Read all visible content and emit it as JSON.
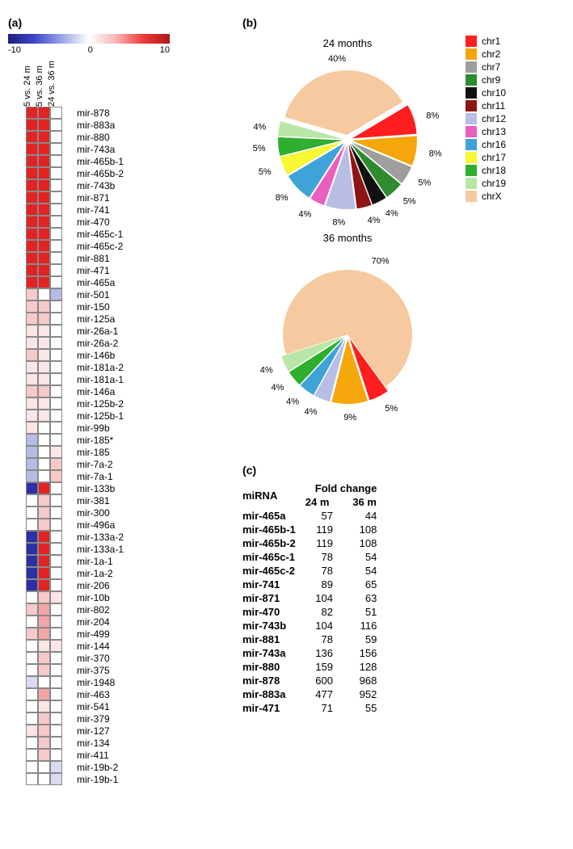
{
  "panel_labels": {
    "a": "(a)",
    "b": "(b)",
    "c": "(c)"
  },
  "colorbar": {
    "min": -10,
    "mid": 0,
    "max": 10,
    "min_label": "-10",
    "mid_label": "0",
    "max_label": "10",
    "gradient_colors": [
      "#1b1d7a",
      "#3f48cc",
      "#9aa6e5",
      "#ffffff",
      "#f7b5b5",
      "#ef3b3b",
      "#b01818"
    ]
  },
  "heatmap": {
    "cols": [
      "5 vs. 24 m",
      "5 vs. 36 m",
      "24 vs. 36 m"
    ],
    "blue": "#2b2fa8",
    "red": "#e32222",
    "white": "#ffffff",
    "lightred1": "#f4a5a5",
    "lightred2": "#f7c9c9",
    "lightred3": "#fbe5e5",
    "lightblue1": "#b7bce6",
    "lightblue2": "#d7daf1",
    "rows": [
      {
        "label": "mir-878",
        "v": [
          "red",
          "red",
          "white"
        ]
      },
      {
        "label": "mir-883a",
        "v": [
          "red",
          "red",
          "white"
        ]
      },
      {
        "label": "mir-880",
        "v": [
          "red",
          "red",
          "white"
        ]
      },
      {
        "label": "mir-743a",
        "v": [
          "red",
          "red",
          "white"
        ]
      },
      {
        "label": "mir-465b-1",
        "v": [
          "red",
          "red",
          "white"
        ]
      },
      {
        "label": "mir-465b-2",
        "v": [
          "red",
          "red",
          "white"
        ]
      },
      {
        "label": "mir-743b",
        "v": [
          "red",
          "red",
          "white"
        ]
      },
      {
        "label": "mir-871",
        "v": [
          "red",
          "red",
          "white"
        ]
      },
      {
        "label": "mir-741",
        "v": [
          "red",
          "red",
          "white"
        ]
      },
      {
        "label": "mir-470",
        "v": [
          "red",
          "red",
          "white"
        ]
      },
      {
        "label": "mir-465c-1",
        "v": [
          "red",
          "red",
          "white"
        ]
      },
      {
        "label": "mir-465c-2",
        "v": [
          "red",
          "red",
          "white"
        ]
      },
      {
        "label": "mir-881",
        "v": [
          "red",
          "red",
          "white"
        ]
      },
      {
        "label": "mir-471",
        "v": [
          "red",
          "red",
          "white"
        ]
      },
      {
        "label": "mir-465a",
        "v": [
          "red",
          "red",
          "white"
        ]
      },
      {
        "label": "mir-501",
        "v": [
          "lightred2",
          "white",
          "lightblue1"
        ]
      },
      {
        "label": "mir-150",
        "v": [
          "lightred2",
          "lightred2",
          "white"
        ]
      },
      {
        "label": "mir-125a",
        "v": [
          "lightred2",
          "lightred2",
          "white"
        ]
      },
      {
        "label": "mir-26a-1",
        "v": [
          "lightred3",
          "lightred3",
          "white"
        ]
      },
      {
        "label": "mir-26a-2",
        "v": [
          "lightred3",
          "lightred3",
          "white"
        ]
      },
      {
        "label": "mir-146b",
        "v": [
          "lightred2",
          "lightred3",
          "white"
        ]
      },
      {
        "label": "mir-181a-2",
        "v": [
          "lightred3",
          "lightred3",
          "white"
        ]
      },
      {
        "label": "mir-181a-1",
        "v": [
          "lightred3",
          "lightred3",
          "white"
        ]
      },
      {
        "label": "mir-146a",
        "v": [
          "lightred2",
          "lightred2",
          "white"
        ]
      },
      {
        "label": "mir-125b-2",
        "v": [
          "lightred3",
          "lightred3",
          "white"
        ]
      },
      {
        "label": "mir-125b-1",
        "v": [
          "lightred3",
          "lightred3",
          "white"
        ]
      },
      {
        "label": "mir-99b",
        "v": [
          "lightred3",
          "white",
          "white"
        ]
      },
      {
        "label": "mir-185*",
        "v": [
          "lightblue1",
          "white",
          "white"
        ]
      },
      {
        "label": "mir-185",
        "v": [
          "lightblue1",
          "white",
          "lightred3"
        ]
      },
      {
        "label": "mir-7a-2",
        "v": [
          "lightblue1",
          "white",
          "lightred2"
        ]
      },
      {
        "label": "mir-7a-1",
        "v": [
          "lightblue1",
          "white",
          "lightred2"
        ]
      },
      {
        "label": "mir-133b",
        "v": [
          "blue",
          "red",
          "white"
        ]
      },
      {
        "label": "mir-381",
        "v": [
          "white",
          "lightred2",
          "white"
        ]
      },
      {
        "label": "mir-300",
        "v": [
          "white",
          "lightred2",
          "white"
        ]
      },
      {
        "label": "mir-496a",
        "v": [
          "white",
          "lightred2",
          "white"
        ]
      },
      {
        "label": "mir-133a-2",
        "v": [
          "blue",
          "red",
          "white"
        ]
      },
      {
        "label": "mir-133a-1",
        "v": [
          "blue",
          "red",
          "white"
        ]
      },
      {
        "label": "mir-1a-1",
        "v": [
          "blue",
          "red",
          "white"
        ]
      },
      {
        "label": "mir-1a-2",
        "v": [
          "blue",
          "red",
          "white"
        ]
      },
      {
        "label": "mir-206",
        "v": [
          "blue",
          "red",
          "white"
        ]
      },
      {
        "label": "mir-10b",
        "v": [
          "white",
          "lightred2",
          "lightred3"
        ]
      },
      {
        "label": "mir-802",
        "v": [
          "lightred2",
          "lightred1",
          "white"
        ]
      },
      {
        "label": "mir-204",
        "v": [
          "white",
          "lightred1",
          "white"
        ]
      },
      {
        "label": "mir-499",
        "v": [
          "lightred2",
          "lightred1",
          "white"
        ]
      },
      {
        "label": "mir-144",
        "v": [
          "white",
          "lightred3",
          "lightred3"
        ]
      },
      {
        "label": "mir-370",
        "v": [
          "white",
          "lightred2",
          "white"
        ]
      },
      {
        "label": "mir-375",
        "v": [
          "white",
          "lightred2",
          "white"
        ]
      },
      {
        "label": "mir-1948",
        "v": [
          "lightblue2",
          "white",
          "white"
        ]
      },
      {
        "label": "mir-463",
        "v": [
          "white",
          "lightred1",
          "white"
        ]
      },
      {
        "label": "mir-541",
        "v": [
          "white",
          "lightred3",
          "white"
        ]
      },
      {
        "label": "mir-379",
        "v": [
          "white",
          "lightred2",
          "white"
        ]
      },
      {
        "label": "mir-127",
        "v": [
          "lightred3",
          "lightred2",
          "white"
        ]
      },
      {
        "label": "mir-134",
        "v": [
          "white",
          "lightred2",
          "white"
        ]
      },
      {
        "label": "mir-411",
        "v": [
          "white",
          "lightred2",
          "white"
        ]
      },
      {
        "label": "mir-19b-2",
        "v": [
          "white",
          "white",
          "lightblue2"
        ]
      },
      {
        "label": "mir-19b-1",
        "v": [
          "white",
          "white",
          "lightblue2"
        ]
      }
    ]
  },
  "pies": {
    "legend": [
      {
        "label": "chr1",
        "color": "#ff1e1e"
      },
      {
        "label": "chr2",
        "color": "#f5a60a"
      },
      {
        "label": "chr7",
        "color": "#9e9e9e"
      },
      {
        "label": "chr9",
        "color": "#2e8b2e"
      },
      {
        "label": "chr10",
        "color": "#111111"
      },
      {
        "label": "chr11",
        "color": "#8f1515"
      },
      {
        "label": "chr12",
        "color": "#b8bde6"
      },
      {
        "label": "chr13",
        "color": "#e85fc0"
      },
      {
        "label": "chr16",
        "color": "#3fa3d8"
      },
      {
        "label": "chr17",
        "color": "#f7f733"
      },
      {
        "label": "chr18",
        "color": "#2fae2f"
      },
      {
        "label": "chr19",
        "color": "#b9e6a6"
      },
      {
        "label": "chrX",
        "color": "#f7c9a0"
      }
    ],
    "p24": {
      "title": "24 months",
      "slices": [
        {
          "key": "chrX",
          "pct": 40
        },
        {
          "key": "chr1",
          "pct": 8
        },
        {
          "key": "chr2",
          "pct": 8
        },
        {
          "key": "chr7",
          "pct": 5
        },
        {
          "key": "chr9",
          "pct": 5
        },
        {
          "key": "chr10",
          "pct": 4
        },
        {
          "key": "chr11",
          "pct": 4
        },
        {
          "key": "chr12",
          "pct": 8
        },
        {
          "key": "chr13",
          "pct": 4
        },
        {
          "key": "chr16",
          "pct": 8
        },
        {
          "key": "chr17",
          "pct": 5
        },
        {
          "key": "chr18",
          "pct": 5
        },
        {
          "key": "chr19",
          "pct": 4
        }
      ],
      "label_slices": [
        "chrX",
        "chr1",
        "chr2",
        "chr7",
        "chr9",
        "chr10",
        "chr11",
        "chr12",
        "chr13",
        "chr16",
        "chr17",
        "chr18",
        "chr19"
      ],
      "start_angle": -164,
      "explode_all": true
    },
    "p36": {
      "title": "36 months",
      "slices": [
        {
          "key": "chrX",
          "pct": 70
        },
        {
          "key": "chr1",
          "pct": 5
        },
        {
          "key": "chr2",
          "pct": 9
        },
        {
          "key": "chr12",
          "pct": 4
        },
        {
          "key": "chr16",
          "pct": 4
        },
        {
          "key": "chr18",
          "pct": 4
        },
        {
          "key": "chr19",
          "pct": 4
        }
      ],
      "label_slices": [
        "chrX",
        "chr1",
        "chr2",
        "chr12",
        "chr16",
        "chr18",
        "chr19"
      ],
      "start_angle": -198,
      "explode_all": false,
      "explode_keys": [
        "chr1",
        "chr2",
        "chr12",
        "chr16",
        "chr18",
        "chr19"
      ]
    }
  },
  "fc_table": {
    "header_mirna": "miRNA",
    "header_group": "Fold change",
    "header_24": "24 m",
    "header_36": "36 m",
    "rows": [
      {
        "mirna": "mir-465a",
        "v24": 57,
        "v36": 44
      },
      {
        "mirna": "mir-465b-1",
        "v24": 119,
        "v36": 108
      },
      {
        "mirna": "mir-465b-2",
        "v24": 119,
        "v36": 108
      },
      {
        "mirna": "mir-465c-1",
        "v24": 78,
        "v36": 54
      },
      {
        "mirna": "mir-465c-2",
        "v24": 78,
        "v36": 54
      },
      {
        "mirna": "mir-741",
        "v24": 89,
        "v36": 65
      },
      {
        "mirna": "mir-871",
        "v24": 104,
        "v36": 63
      },
      {
        "mirna": "mir-470",
        "v24": 82,
        "v36": 51
      },
      {
        "mirna": "mir-743b",
        "v24": 104,
        "v36": 116
      },
      {
        "mirna": "mir-881",
        "v24": 78,
        "v36": 59
      },
      {
        "mirna": "mir-743a",
        "v24": 136,
        "v36": 156
      },
      {
        "mirna": "mir-880",
        "v24": 159,
        "v36": 128
      },
      {
        "mirna": "mir-878",
        "v24": 600,
        "v36": 968
      },
      {
        "mirna": "mir-883a",
        "v24": 477,
        "v36": 952
      },
      {
        "mirna": "mir-471",
        "v24": 71,
        "v36": 55
      }
    ]
  }
}
